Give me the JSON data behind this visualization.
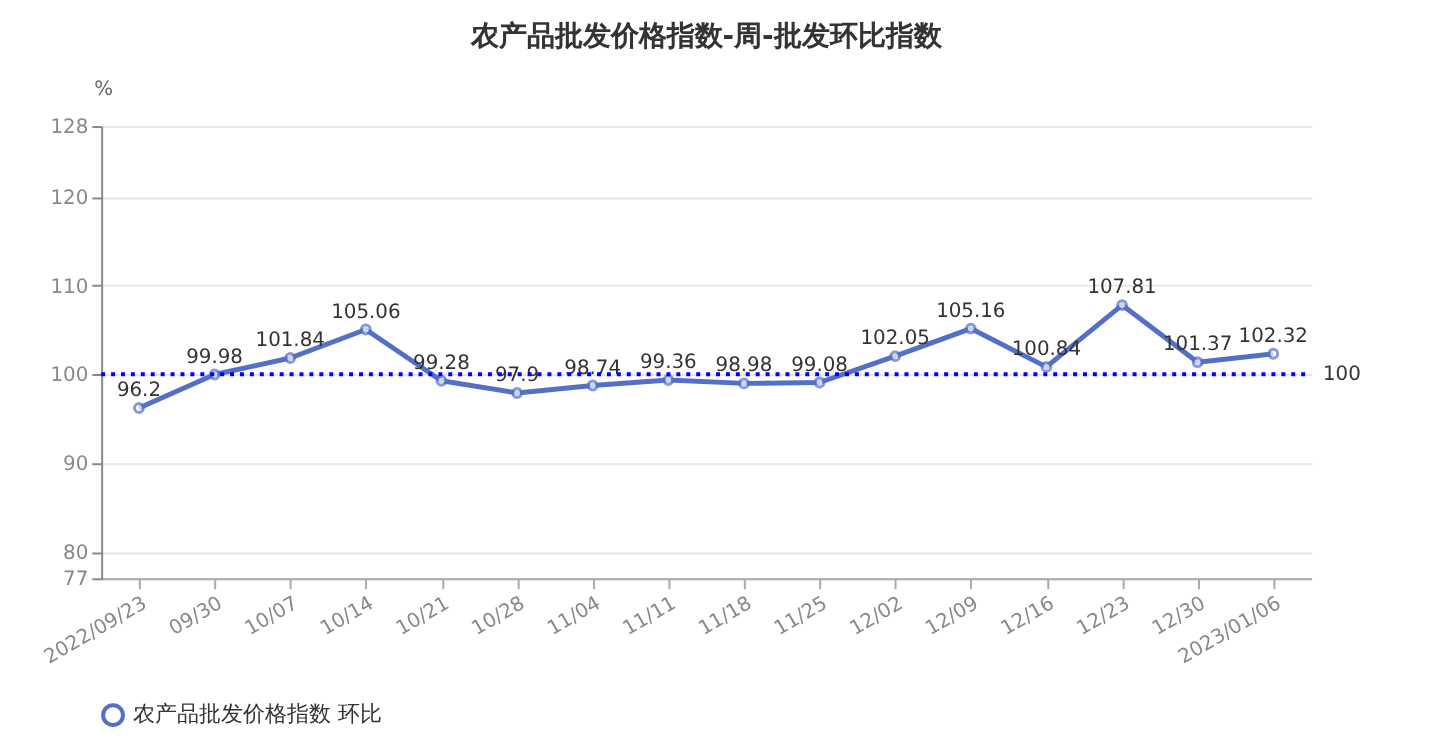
{
  "chart_data": {
    "type": "line",
    "title": "农产品批发价格指数-周-批发环比指数",
    "ylabel": "%",
    "categories": [
      "2022/09/23",
      "09/30",
      "10/07",
      "10/14",
      "10/21",
      "10/28",
      "11/04",
      "11/11",
      "11/18",
      "11/25",
      "12/02",
      "12/09",
      "12/16",
      "12/23",
      "12/30",
      "2023/01/06"
    ],
    "series": [
      {
        "name": "农产品批发价格指数 环比",
        "color": "#5470c6",
        "values": [
          96.2,
          99.98,
          101.84,
          105.06,
          99.28,
          97.9,
          98.74,
          99.36,
          98.98,
          99.08,
          102.05,
          105.16,
          100.84,
          107.81,
          101.37,
          102.32
        ]
      }
    ],
    "ylim": [
      77,
      128
    ],
    "yticks": [
      77,
      80,
      90,
      100,
      110,
      120,
      128
    ],
    "ref_lines": [
      {
        "axis": "y",
        "value": 100,
        "label": "100",
        "color": "#0000ff",
        "line_style": "dotted"
      }
    ],
    "data_labels": true,
    "grid": "y",
    "legend": "bottom",
    "marker": "circle",
    "line_style": "solid"
  }
}
